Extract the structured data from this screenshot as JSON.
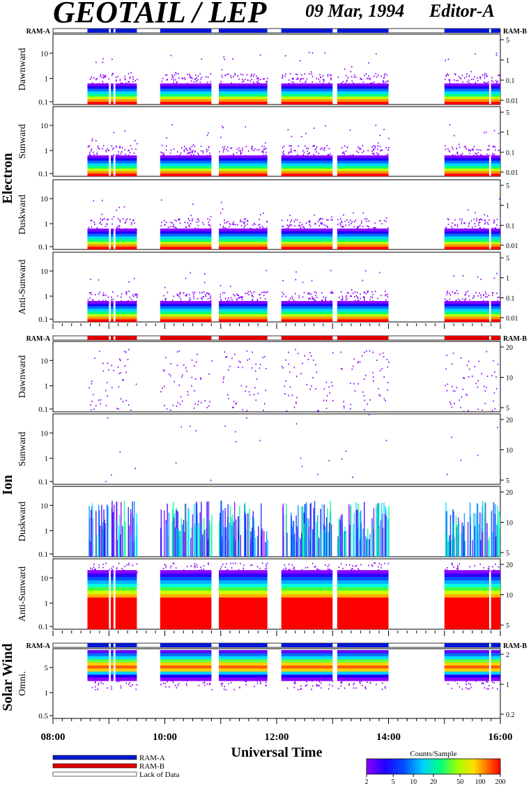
{
  "header": {
    "title": "GEOTAIL / LEP",
    "date": "09 Mar, 1994",
    "version": "Editor-A"
  },
  "colors": {
    "ram_a": "#0018d0",
    "ram_b": "#e00000",
    "lack_of_data": "#ffffff",
    "colorbar": [
      "#8a00ff",
      "#0000ff",
      "#00a8ff",
      "#00ffff",
      "#00ff00",
      "#ffff00",
      "#ff9900",
      "#ff0000"
    ]
  },
  "chart_data": {
    "type": "heatmap",
    "xlabel": "Universal Time",
    "xlim_hours": [
      8,
      16
    ],
    "x_tick_labels": [
      "08:00",
      "10:00",
      "12:00",
      "14:00",
      "16:00"
    ],
    "data_intervals_UT": [
      [
        "08:37",
        "09:00"
      ],
      [
        "09:02",
        "09:05"
      ],
      [
        "09:07",
        "09:30"
      ],
      [
        "09:55",
        "10:50"
      ],
      [
        "10:58",
        "11:50"
      ],
      [
        "12:05",
        "13:00"
      ],
      [
        "13:05",
        "14:00"
      ],
      [
        "15:00",
        "15:48"
      ],
      [
        "15:50",
        "16:00"
      ]
    ],
    "groups": [
      {
        "name": "Electron",
        "bar_labels": [
          "RAM-A",
          "RAM-B"
        ],
        "mode_bar": "RAM-A",
        "panels": [
          {
            "label": "Dawnward",
            "left_ticks": [
              "10",
              "1",
              "0.1"
            ],
            "right_ticks": [
              "5",
              "1",
              "0.1",
              "0.01"
            ]
          },
          {
            "label": "Sunward",
            "left_ticks": [
              "10",
              "1",
              "0.1"
            ],
            "right_ticks": [
              "5",
              "1",
              "0.1",
              "0.01"
            ]
          },
          {
            "label": "Duskward",
            "left_ticks": [
              "10",
              "1",
              "0.1"
            ],
            "right_ticks": [
              "5",
              "1",
              "0.1",
              "0.01"
            ]
          },
          {
            "label": "Anti-Sunward",
            "left_ticks": [
              "10",
              "1",
              "0.1"
            ],
            "right_ticks": [
              "5",
              "1",
              "0.1",
              "0.01"
            ]
          }
        ]
      },
      {
        "name": "Ion",
        "bar_labels": [
          "RAM-A",
          "RAM-B"
        ],
        "mode_bar": "RAM-B",
        "panels": [
          {
            "label": "Dawnward",
            "left_ticks": [
              "10",
              "1",
              "0.1"
            ],
            "right_ticks": [
              "20",
              "10",
              "5"
            ]
          },
          {
            "label": "Sunward",
            "left_ticks": [
              "10",
              "1",
              "0.1"
            ],
            "right_ticks": [
              "20",
              "10",
              "5"
            ]
          },
          {
            "label": "Duskward",
            "left_ticks": [
              "10",
              "1",
              "0.1"
            ],
            "right_ticks": [
              "20",
              "10",
              "5"
            ]
          },
          {
            "label": "Anti-Sunward",
            "left_ticks": [
              "10",
              "1",
              "0.1"
            ],
            "right_ticks": [
              "20",
              "10",
              "5"
            ]
          }
        ]
      },
      {
        "name": "Solar Wind",
        "bar_labels": [
          "RAM-A",
          "RAM-B"
        ],
        "mode_bar": "RAM-A",
        "panels": [
          {
            "label": "Omni.",
            "left_ticks": [
              "5",
              "1",
              "0.5"
            ],
            "right_ticks": [
              "2",
              "1",
              "0.2"
            ]
          }
        ]
      }
    ],
    "legend": {
      "entries": [
        "RAM-A",
        "RAM-B",
        "Lack of Data"
      ]
    },
    "colorbar": {
      "label": "Counts/Sample",
      "tick_labels": [
        "2",
        "5",
        "10",
        "20",
        "50",
        "100",
        "200"
      ],
      "range": [
        2,
        200
      ],
      "scale": "log"
    }
  }
}
